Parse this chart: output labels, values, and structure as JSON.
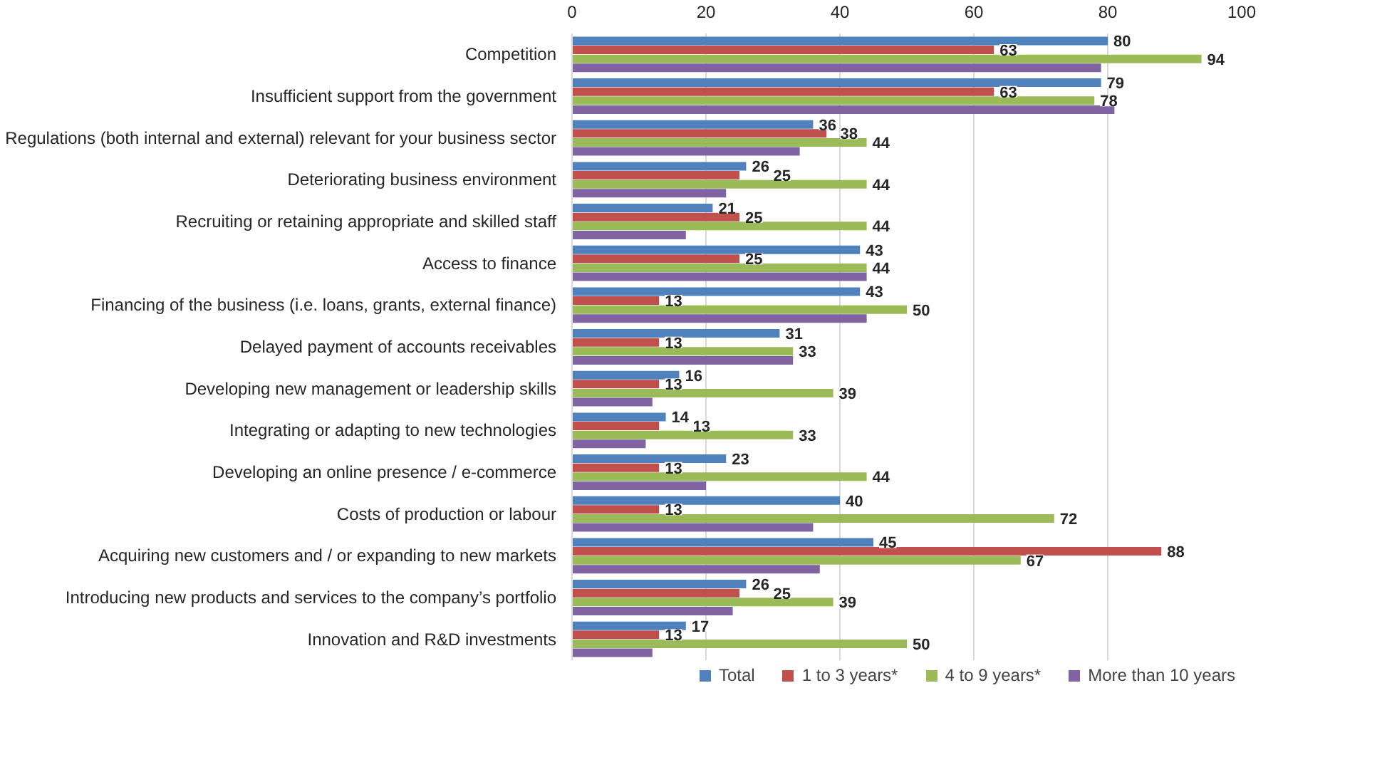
{
  "chart_data": {
    "type": "bar",
    "orientation": "horizontal",
    "categories": [
      "Competition",
      "Insufficient support from the government",
      "Regulations (both internal and external) relevant for your business sector",
      "Deteriorating business environment",
      "Recruiting or retaining appropriate and skilled staff",
      "Access to finance",
      "Financing of the business (i.e. loans, grants, external finance)",
      "Delayed payment of accounts receivables",
      "Developing new management or leadership skills",
      "Integrating or adapting to new technologies",
      "Developing an online presence / e-commerce",
      "Costs of production or labour",
      "Acquiring new customers and / or expanding to new markets",
      "Introducing new products and services to the company’s portfolio",
      "Innovation and R&D investments"
    ],
    "series": [
      {
        "name": "Total",
        "color": "#4f81bd",
        "values": [
          80,
          79,
          36,
          26,
          21,
          43,
          43,
          31,
          16,
          14,
          23,
          40,
          45,
          26,
          17
        ],
        "value_labels": [
          "80",
          "79",
          "36",
          "26",
          "21",
          "43",
          "43",
          "31",
          "16",
          "14",
          "23",
          "40",
          "45",
          "26",
          "17"
        ]
      },
      {
        "name": "1 to 3 years*",
        "color": "#c0504d",
        "values": [
          63,
          63,
          38,
          25,
          25,
          25,
          13,
          13,
          13,
          13,
          13,
          13,
          88,
          25,
          13
        ],
        "value_labels": [
          "63",
          "63",
          "38",
          "25",
          "25",
          "25",
          "13",
          "13",
          "13",
          "13",
          "13",
          "13",
          "88",
          "25",
          "13"
        ]
      },
      {
        "name": "4 to 9 years*",
        "color": "#9bbb59",
        "values": [
          94,
          78,
          44,
          44,
          44,
          44,
          50,
          33,
          39,
          33,
          44,
          72,
          67,
          39,
          50
        ],
        "value_labels": [
          "94",
          "78",
          "44",
          "44",
          "44",
          "44",
          "50",
          "33",
          "39",
          "33",
          "44",
          "72",
          "67",
          "39",
          "50"
        ]
      },
      {
        "name": "More than 10 years",
        "color": "#8064a2",
        "values": [
          79,
          81,
          34,
          23,
          17,
          44,
          44,
          33,
          12,
          11,
          20,
          36,
          37,
          24,
          12
        ]
      }
    ],
    "xlim": [
      0,
      100
    ],
    "xticks": [
      0,
      20,
      40,
      60,
      80,
      100
    ],
    "grid": "x",
    "legend": "bottom"
  }
}
